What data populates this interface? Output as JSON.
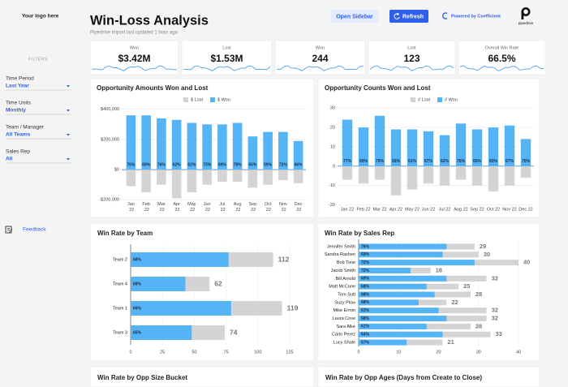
{
  "header": {
    "logo": "Your logo here",
    "title": "Win-Loss Analysis",
    "subtitle": "Pipedrive import last updated 1 hour ago",
    "open_sidebar": "Open Sidebar",
    "refresh": "Refresh",
    "powered_by": "Powered by Coefficient",
    "brand": "pipedrive"
  },
  "sidebar": {
    "heading": "FILTERS",
    "filters": [
      {
        "label": "Time Period",
        "value": "Last Year"
      },
      {
        "label": "Time Units",
        "value": "Monthly"
      },
      {
        "label": "Team / Manager",
        "value": "All Teams"
      },
      {
        "label": "Sales Rep",
        "value": "All"
      }
    ],
    "feedback": "Feedback"
  },
  "kpis": [
    {
      "label": "Won",
      "value": "$3.42M"
    },
    {
      "label": "Lost",
      "value": "$1.53M"
    },
    {
      "label": "Won",
      "value": "244"
    },
    {
      "label": "Lost",
      "value": "123"
    },
    {
      "label": "Overall Win Rate",
      "value": "66.5%"
    }
  ],
  "chart_data": [
    {
      "type": "bar",
      "title": "Opportunity Amounts Won and Lost",
      "categories": [
        "Jan 22",
        "Feb 22",
        "Mar 22",
        "Apr 22",
        "May 22",
        "Jun 22",
        "Jul 22",
        "Aug 22",
        "Sep 22",
        "Oct 22",
        "Nov 22",
        "Dec 22"
      ],
      "series": [
        {
          "name": "$ Lost",
          "color": "#d4d4d4",
          "values": [
            -110000,
            -150000,
            -100000,
            -190000,
            -150000,
            -100000,
            -80000,
            -80000,
            -120000,
            -100000,
            -70000,
            -90000
          ]
        },
        {
          "name": "$ Won",
          "color": "#55b4f5",
          "values": [
            360000,
            360000,
            340000,
            330000,
            310000,
            300000,
            300000,
            310000,
            220000,
            250000,
            250000,
            190000
          ]
        }
      ],
      "bar_labels": [
        "76%",
        "69%",
        "76%",
        "62%",
        "62%",
        "73%",
        "69%",
        "78%",
        "65%",
        "59%",
        "72%",
        "66%"
      ],
      "ylim": [
        -220000,
        420000
      ],
      "yticks": [
        {
          "value": -200000,
          "label": "-$200,000"
        },
        {
          "value": 0,
          "label": "$0"
        },
        {
          "value": 200000,
          "label": "$200,000"
        },
        {
          "value": 400000,
          "label": "$400,000"
        }
      ],
      "grid": true,
      "legend": "top"
    },
    {
      "type": "bar",
      "title": "Opportunity Counts Won and Lost",
      "categories": [
        "Jan 22",
        "Feb 22",
        "Mar 22",
        "Apr 22",
        "May 22",
        "Jun 22",
        "Jul 22",
        "Aug 22",
        "Sep 22",
        "Oct 22",
        "Nov 22",
        "Dec 22"
      ],
      "series": [
        {
          "name": "# Lost",
          "color": "#d4d4d4",
          "values": [
            -7,
            -9,
            -7,
            -15,
            -12,
            -9,
            -10,
            -7,
            -10,
            -13,
            -10,
            -6
          ]
        },
        {
          "name": "# Won",
          "color": "#55b4f5",
          "values": [
            24,
            20,
            26,
            19,
            19,
            18,
            16,
            22,
            19,
            20,
            21,
            14
          ]
        }
      ],
      "bar_labels": [
        "77%",
        "69%",
        "79%",
        "56%",
        "61%",
        "67%",
        "62%",
        "76%",
        "65%",
        "60%",
        "67%",
        "70%"
      ],
      "ylim": [
        -21,
        33
      ],
      "yticks": [
        -20,
        -10,
        0,
        10,
        20,
        30
      ],
      "grid": true,
      "legend": "top"
    },
    {
      "type": "bar",
      "horizontal": true,
      "title": "Win Rate by Team",
      "categories": [
        "Team 2",
        "Team 4",
        "Team 1",
        "Team 3"
      ],
      "series": [
        {
          "color": "#55b4f5",
          "values": [
            77,
            43,
            79,
            48
          ]
        },
        {
          "color": "#d4d4d4",
          "values": [
            112,
            62,
            119,
            74
          ]
        }
      ],
      "bar_labels": [
        "68%",
        "68%",
        "66%",
        "65%"
      ],
      "xlim": [
        0,
        125
      ],
      "xticks": [
        0,
        25,
        50,
        75,
        100,
        125
      ],
      "grid": true
    },
    {
      "type": "bar",
      "horizontal": true,
      "title": "Win Rate by Sales Rep",
      "categories": [
        "Jennifer Smith",
        "Sandra Rashen",
        "Bob Tone",
        "Jacob Smith",
        "Bill Arnold",
        "Matt McCane",
        "Tom Sutt",
        "Suzy Plow",
        "Mike Ermin",
        "Laura Cove",
        "Sara Alke",
        "Carlo Perez",
        "Lucy Shale"
      ],
      "series": [
        {
          "color": "#55b4f5",
          "values": [
            22,
            21,
            29,
            13,
            22,
            17,
            19,
            15,
            20,
            22,
            17,
            21,
            12
          ]
        },
        {
          "color": "#d4d4d4",
          "values": [
            29,
            30,
            40,
            18,
            32,
            25,
            28,
            22,
            32,
            32,
            28,
            33,
            21
          ]
        }
      ],
      "bar_labels": [
        "76%",
        "69%",
        "72%",
        "72%",
        "69%",
        "68%",
        "68%",
        "68%",
        "63%",
        "68%",
        "61%",
        "64%",
        "57%"
      ],
      "xlim": [
        0,
        40
      ],
      "xticks": [
        0,
        10,
        20,
        30,
        40
      ],
      "grid": true
    }
  ],
  "panels": [
    {
      "title": "Win Rate by Opp Size Bucket"
    },
    {
      "title": "Win Rate by Opp Ages (Days from Create to Close)"
    }
  ]
}
